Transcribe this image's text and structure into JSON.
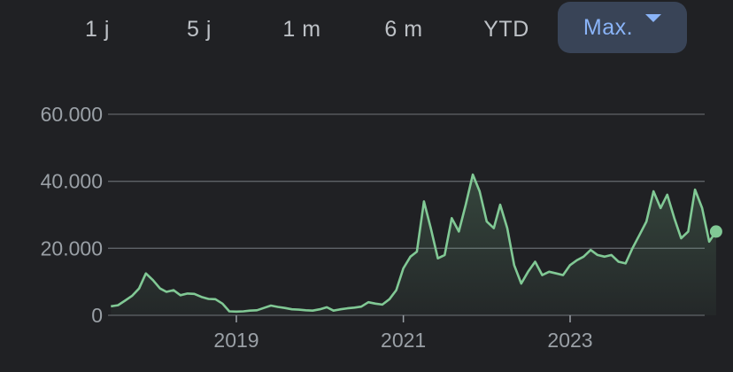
{
  "range_selector": {
    "options": [
      {
        "label": "1 j"
      },
      {
        "label": "5 j"
      },
      {
        "label": "1 m"
      },
      {
        "label": "6 m"
      },
      {
        "label": "YTD"
      },
      {
        "label": "Max."
      }
    ],
    "selected_index": 5,
    "accent_color": "#8ab4f8",
    "selected_background": "#394457"
  },
  "chart_data": {
    "type": "area",
    "y_tick_labels": [
      "0",
      "20.000",
      "40.000",
      "60.000"
    ],
    "x_tick_labels": [
      "2019",
      "2021",
      "2023"
    ],
    "ylim": [
      0,
      60000
    ],
    "grid": true,
    "line_color": "#81c995",
    "series": [
      {
        "values": [
          [
            "2017-07-01",
            2700
          ],
          [
            "2017-08-01",
            3000
          ],
          [
            "2017-09-01",
            4400
          ],
          [
            "2017-10-01",
            5800
          ],
          [
            "2017-11-01",
            8000
          ],
          [
            "2017-12-01",
            12500
          ],
          [
            "2018-01-01",
            10500
          ],
          [
            "2018-02-01",
            8000
          ],
          [
            "2018-03-01",
            7000
          ],
          [
            "2018-04-01",
            7500
          ],
          [
            "2018-05-01",
            6000
          ],
          [
            "2018-06-01",
            6500
          ],
          [
            "2018-07-01",
            6400
          ],
          [
            "2018-08-01",
            5500
          ],
          [
            "2018-09-01",
            4900
          ],
          [
            "2018-10-01",
            4800
          ],
          [
            "2018-11-01",
            3500
          ],
          [
            "2018-12-01",
            1200
          ],
          [
            "2019-01-01",
            1100
          ],
          [
            "2019-02-01",
            1200
          ],
          [
            "2019-03-01",
            1400
          ],
          [
            "2019-04-01",
            1500
          ],
          [
            "2019-05-01",
            2200
          ],
          [
            "2019-06-01",
            2900
          ],
          [
            "2019-07-01",
            2500
          ],
          [
            "2019-08-01",
            2200
          ],
          [
            "2019-09-01",
            1800
          ],
          [
            "2019-10-01",
            1700
          ],
          [
            "2019-11-01",
            1500
          ],
          [
            "2019-12-01",
            1400
          ],
          [
            "2020-01-01",
            1800
          ],
          [
            "2020-02-01",
            2400
          ],
          [
            "2020-03-01",
            1400
          ],
          [
            "2020-04-01",
            1800
          ],
          [
            "2020-05-01",
            2100
          ],
          [
            "2020-06-01",
            2300
          ],
          [
            "2020-07-01",
            2600
          ],
          [
            "2020-08-01",
            3900
          ],
          [
            "2020-09-01",
            3500
          ],
          [
            "2020-10-01",
            3200
          ],
          [
            "2020-11-01",
            4800
          ],
          [
            "2020-12-01",
            7500
          ],
          [
            "2021-01-01",
            14000
          ],
          [
            "2021-02-01",
            17500
          ],
          [
            "2021-03-01",
            19000
          ],
          [
            "2021-04-01",
            34000
          ],
          [
            "2021-05-01",
            26000
          ],
          [
            "2021-06-01",
            17000
          ],
          [
            "2021-07-01",
            18000
          ],
          [
            "2021-08-01",
            29000
          ],
          [
            "2021-09-01",
            25000
          ],
          [
            "2021-10-01",
            33000
          ],
          [
            "2021-11-01",
            42000
          ],
          [
            "2021-12-01",
            37000
          ],
          [
            "2022-01-01",
            28000
          ],
          [
            "2022-02-01",
            26000
          ],
          [
            "2022-03-01",
            33000
          ],
          [
            "2022-04-01",
            26000
          ],
          [
            "2022-05-01",
            15000
          ],
          [
            "2022-06-01",
            9500
          ],
          [
            "2022-07-01",
            13000
          ],
          [
            "2022-08-01",
            16000
          ],
          [
            "2022-09-01",
            12000
          ],
          [
            "2022-10-01",
            13000
          ],
          [
            "2022-11-01",
            12500
          ],
          [
            "2022-12-01",
            12000
          ],
          [
            "2023-01-01",
            15000
          ],
          [
            "2023-02-01",
            16500
          ],
          [
            "2023-03-01",
            17500
          ],
          [
            "2023-04-01",
            19500
          ],
          [
            "2023-05-01",
            18000
          ],
          [
            "2023-06-01",
            17500
          ],
          [
            "2023-07-01",
            18000
          ],
          [
            "2023-08-01",
            16000
          ],
          [
            "2023-09-01",
            15500
          ],
          [
            "2023-10-01",
            20000
          ],
          [
            "2023-11-01",
            24000
          ],
          [
            "2023-12-01",
            28000
          ],
          [
            "2024-01-01",
            37000
          ],
          [
            "2024-02-01",
            32000
          ],
          [
            "2024-03-01",
            36000
          ],
          [
            "2024-04-01",
            29000
          ],
          [
            "2024-05-01",
            23000
          ],
          [
            "2024-06-01",
            25000
          ],
          [
            "2024-07-01",
            37500
          ],
          [
            "2024-08-01",
            32000
          ],
          [
            "2024-09-01",
            22000
          ],
          [
            "2024-10-01",
            25000
          ]
        ]
      }
    ]
  }
}
